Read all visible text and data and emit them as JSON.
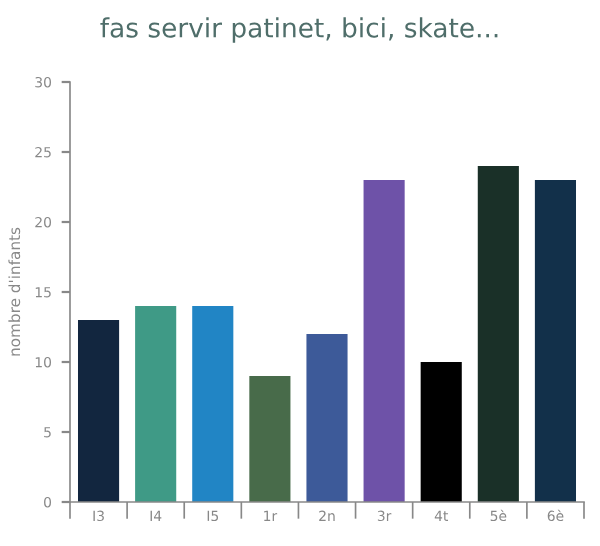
{
  "chart_data": {
    "type": "bar",
    "title": "fas servir patinet, bici, skate...",
    "ylabel": "nombre d'infants",
    "categories": [
      "I3",
      "I4",
      "I5",
      "1r",
      "2n",
      "3r",
      "4t",
      "5è",
      "6è"
    ],
    "values": [
      13,
      14,
      14,
      9,
      12,
      23,
      10,
      24,
      23
    ],
    "colors": [
      "#12263f",
      "#3f9a86",
      "#2185c5",
      "#486b4a",
      "#3d5a99",
      "#6e52a8",
      "#000000",
      "#1a3028",
      "#12304a"
    ],
    "ylim": [
      0,
      30
    ],
    "yticks": [
      0,
      5,
      10,
      15,
      20,
      25,
      30
    ],
    "grid": false
  }
}
